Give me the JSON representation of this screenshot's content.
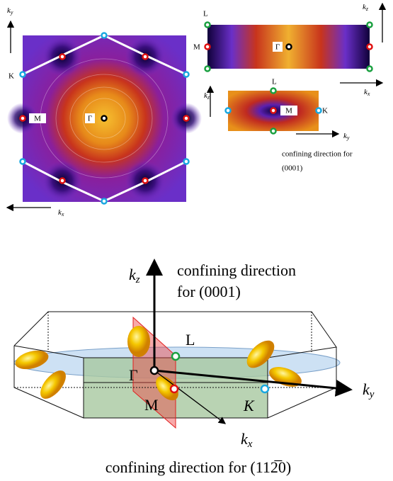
{
  "in_plane_map": {
    "axis_vertical": {
      "main": "k",
      "sub": "y"
    },
    "axis_horizontal": {
      "main": "k",
      "sub": "x"
    },
    "label_K": "K",
    "label_M": "M",
    "label_Gamma": "Γ"
  },
  "side_map_top": {
    "label_L": "L",
    "label_M": "M",
    "label_Gamma": "Γ",
    "axis_vertical": {
      "main": "k",
      "sub": "z"
    },
    "axis_horizontal": {
      "main": "k",
      "sub": "x"
    }
  },
  "side_map_bottom": {
    "label_L": "L",
    "label_M": "M",
    "label_K": "K",
    "axis_vertical": {
      "main": "k",
      "sub": "z"
    },
    "axis_horizontal": {
      "main": "k",
      "sub": "y"
    },
    "caption_line1": "confining direction for",
    "caption_line2": "(0001)"
  },
  "brillouin_zone": {
    "axis_z": {
      "main": "k",
      "sub": "z"
    },
    "axis_y": {
      "main": "k",
      "sub": "y"
    },
    "axis_x": {
      "main": "k",
      "sub": "x"
    },
    "caption_z_line1": "confining direction",
    "caption_z_line2": "for (0001)",
    "label_L": "L",
    "label_Gamma": "Γ",
    "label_M": "M",
    "label_K": "K",
    "caption_x": "confining direction for (112̅0)"
  }
}
